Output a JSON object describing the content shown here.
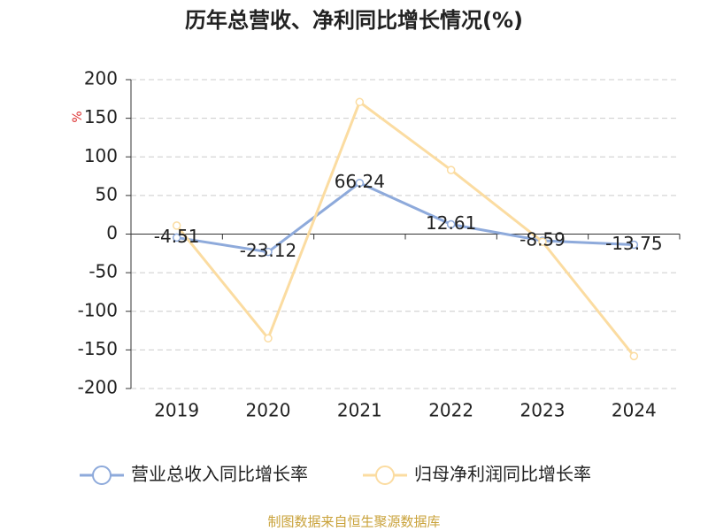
{
  "chart_data": {
    "type": "line",
    "title": "历年总营收、净利同比增长情况(%)",
    "y_label": "%",
    "categories": [
      "2019",
      "2020",
      "2021",
      "2022",
      "2023",
      "2024"
    ],
    "series": [
      {
        "name": "营业总收入同比增长率",
        "color": "#8eaadb",
        "values": [
          -4.51,
          -23.12,
          66.24,
          12.61,
          -8.59,
          -13.75
        ],
        "show_labels": true
      },
      {
        "name": "归母净利润同比增长率",
        "color": "#fbdca1",
        "values": [
          11,
          -135,
          171,
          83,
          -10,
          -158
        ],
        "show_labels": false
      }
    ],
    "ylim": [
      -200,
      200
    ],
    "yticks": [
      -200,
      -150,
      -100,
      -50,
      0,
      50,
      100,
      150,
      200
    ],
    "grid": true,
    "source": "制图数据来自恒生聚源数据库"
  }
}
